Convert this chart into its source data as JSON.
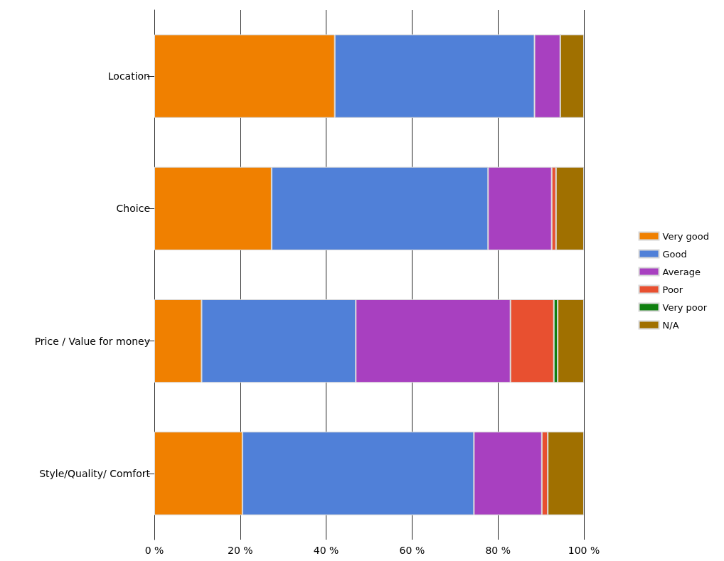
{
  "chart_data": {
    "type": "bar",
    "orientation": "horizontal",
    "stacked": true,
    "categories": [
      "Location",
      "Choice",
      "Price / Value for money",
      "Style/Quality/ Comfort"
    ],
    "series": [
      {
        "name": "Very good",
        "color": "#f08000",
        "values": [
          42,
          27.3,
          11,
          20.5
        ]
      },
      {
        "name": "Good",
        "color": "#5080d8",
        "values": [
          46.5,
          50.4,
          35.9,
          53.9
        ]
      },
      {
        "name": "Average",
        "color": "#a840c0",
        "values": [
          6,
          14.8,
          36,
          15.8
        ]
      },
      {
        "name": "Poor",
        "color": "#e85030",
        "values": [
          0,
          1,
          10.1,
          1.4
        ]
      },
      {
        "name": "Very poor",
        "color": "#108010",
        "values": [
          0,
          0,
          0.9,
          0
        ]
      },
      {
        "name": "N/A",
        "color": "#a07000",
        "values": [
          5.5,
          6.5,
          6.1,
          8.4
        ]
      }
    ],
    "xlim": [
      0,
      100
    ],
    "xticks": [
      {
        "value": 0,
        "label": "0 %"
      },
      {
        "value": 20,
        "label": "20 %"
      },
      {
        "value": 40,
        "label": "40 %"
      },
      {
        "value": 60,
        "label": "60 %"
      },
      {
        "value": 80,
        "label": "80 %"
      },
      {
        "value": 100,
        "label": "100 %"
      }
    ],
    "grid": "x",
    "legend": "right"
  }
}
